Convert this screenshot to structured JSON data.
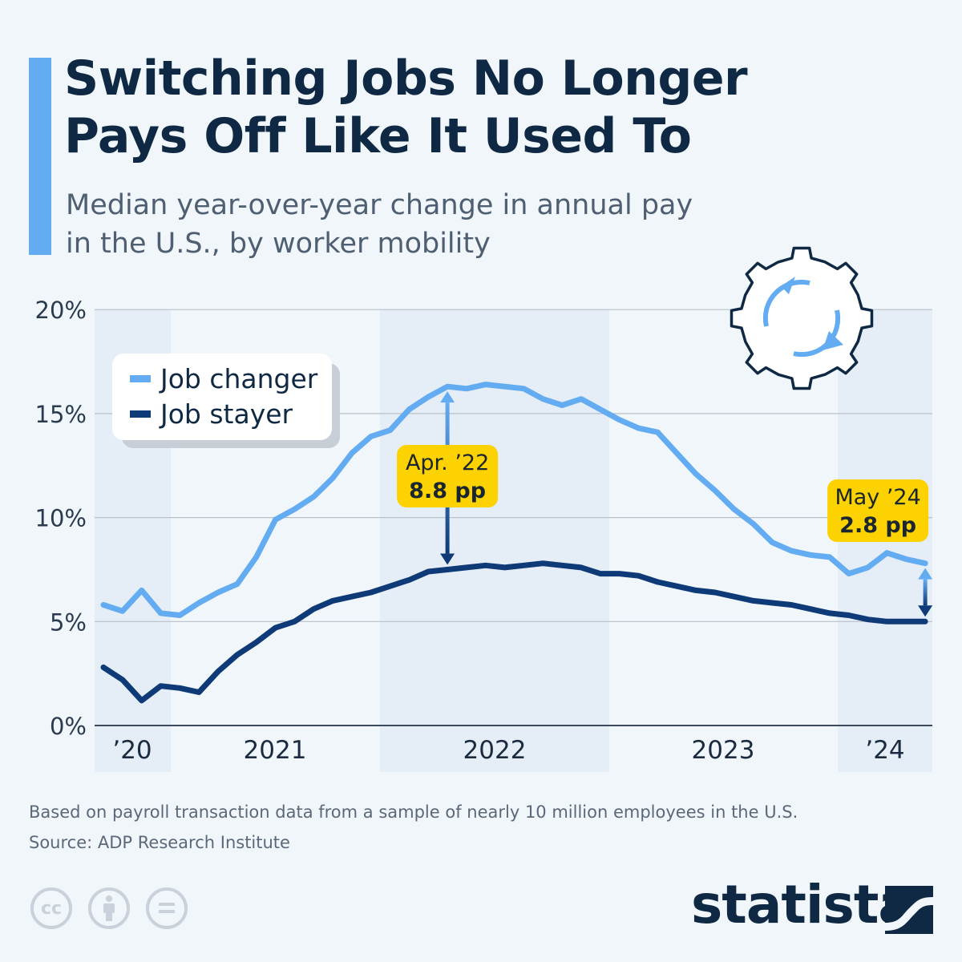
{
  "header": {
    "title_line1": "Switching Jobs No Longer",
    "title_line2": "Pays Off Like It Used To",
    "subtitle_line1": "Median year-over-year change in annual pay",
    "subtitle_line2": "in the U.S., by worker mobility"
  },
  "chart_data": {
    "type": "line",
    "title": "Switching Jobs No Longer Pays Off Like It Used To",
    "subtitle": "Median year-over-year change in annual pay in the U.S., by worker mobility",
    "ylim": [
      0,
      20
    ],
    "y_ticks": [
      "0%",
      "5%",
      "10%",
      "15%",
      "20%"
    ],
    "x_tick_labels": [
      "’20",
      "2021",
      "2022",
      "2023",
      "’24"
    ],
    "grid": true,
    "legend_placement": "top-left",
    "x": [
      "2020-10",
      "2020-11",
      "2020-12",
      "2021-01",
      "2021-02",
      "2021-03",
      "2021-04",
      "2021-05",
      "2021-06",
      "2021-07",
      "2021-08",
      "2021-09",
      "2021-10",
      "2021-11",
      "2021-12",
      "2022-01",
      "2022-02",
      "2022-03",
      "2022-04",
      "2022-05",
      "2022-06",
      "2022-07",
      "2022-08",
      "2022-09",
      "2022-10",
      "2022-11",
      "2022-12",
      "2023-01",
      "2023-02",
      "2023-03",
      "2023-04",
      "2023-05",
      "2023-06",
      "2023-07",
      "2023-08",
      "2023-09",
      "2023-10",
      "2023-11",
      "2023-12",
      "2024-01",
      "2024-02",
      "2024-03",
      "2024-04",
      "2024-05"
    ],
    "series": [
      {
        "name": "Job changer",
        "color": "#64acf2",
        "values": [
          5.8,
          5.5,
          6.5,
          5.4,
          5.3,
          5.9,
          6.4,
          6.8,
          8.1,
          9.9,
          10.4,
          11.0,
          11.9,
          13.1,
          13.9,
          14.2,
          15.2,
          15.8,
          16.3,
          16.2,
          16.4,
          16.3,
          16.2,
          15.7,
          15.4,
          15.7,
          15.2,
          14.7,
          14.3,
          14.1,
          13.1,
          12.1,
          11.3,
          10.4,
          9.7,
          8.8,
          8.4,
          8.2,
          8.1,
          7.3,
          7.6,
          8.3,
          8.0,
          7.8
        ]
      },
      {
        "name": "Job stayer",
        "color": "#0e3a78",
        "values": [
          2.8,
          2.2,
          1.2,
          1.9,
          1.8,
          1.6,
          2.6,
          3.4,
          4.0,
          4.7,
          5.0,
          5.6,
          6.0,
          6.2,
          6.4,
          6.7,
          7.0,
          7.4,
          7.5,
          7.6,
          7.7,
          7.6,
          7.7,
          7.8,
          7.7,
          7.6,
          7.3,
          7.3,
          7.2,
          6.9,
          6.7,
          6.5,
          6.4,
          6.2,
          6.0,
          5.9,
          5.8,
          5.6,
          5.4,
          5.3,
          5.1,
          5.0,
          5.0,
          5.0
        ]
      }
    ],
    "annotations": [
      {
        "date_label": "Apr. ’22",
        "value_label": "8.8 pp",
        "x": "2022-04"
      },
      {
        "date_label": "May ’24",
        "value_label": "2.8 pp",
        "x": "2024-05"
      }
    ],
    "colors": {
      "highlight": "#fcd200",
      "band": "#e5edf6"
    }
  },
  "footer": {
    "note": "Based on payroll transaction data from a sample of nearly 10 million employees in the U.S.",
    "source": "Source: ADP Research Institute",
    "brand": "statista"
  },
  "icons": [
    "gear-refresh-icon",
    "creative-commons-icon",
    "attribution-icon",
    "no-derivatives-icon",
    "statista-logo-icon"
  ]
}
